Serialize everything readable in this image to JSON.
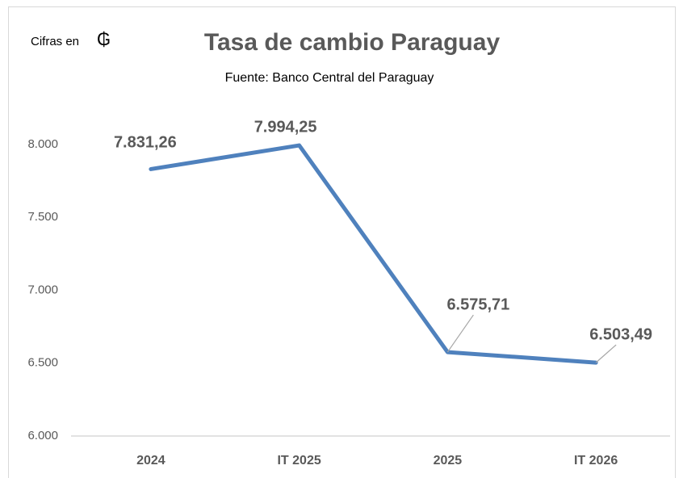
{
  "chart_data": {
    "type": "line",
    "title": "Tasa de cambio Paraguay",
    "subtitle": "Fuente: Banco Central del Paraguay",
    "annotation": "Cifras en",
    "currency_symbol": "₲",
    "categories": [
      "2024",
      "IT 2025",
      "2025",
      "IT 2026"
    ],
    "series": [
      {
        "name": "Tasa de cambio",
        "color": "#4f81bd",
        "values": [
          7831.26,
          7994.25,
          6575.71,
          6503.49
        ],
        "value_labels": [
          "7.831,26",
          "7.994,25",
          "6.575,71",
          "6.503,49"
        ]
      }
    ],
    "ylim": [
      6000,
      8000
    ],
    "yticks": [
      {
        "value": 6000,
        "label": "6.000"
      },
      {
        "value": 6500,
        "label": "6.500"
      },
      {
        "value": 7000,
        "label": "7.000"
      },
      {
        "value": 7500,
        "label": "7.500"
      },
      {
        "value": 8000,
        "label": "8.000"
      }
    ],
    "grid": false,
    "legend": false
  }
}
